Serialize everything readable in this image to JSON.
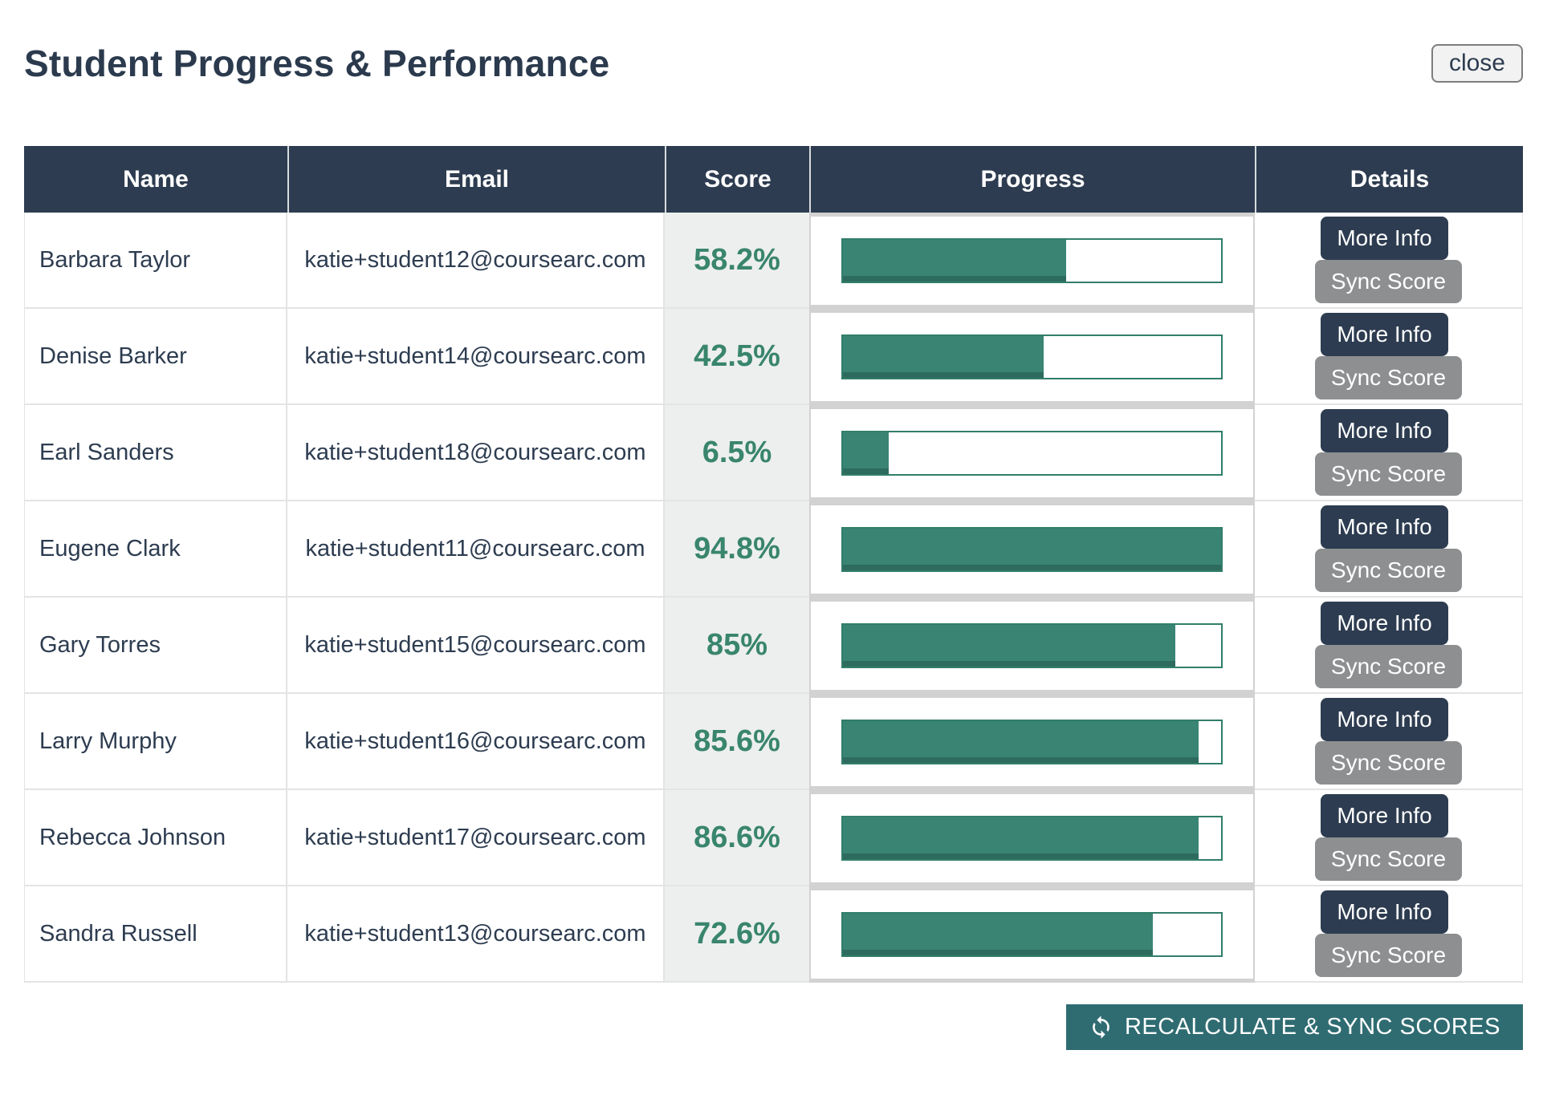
{
  "header": {
    "title": "Student Progress & Performance",
    "close_label": "close"
  },
  "table": {
    "columns": [
      "Name",
      "Email",
      "Score",
      "Progress",
      "Details"
    ],
    "rows": [
      {
        "name": "Barbara Taylor",
        "email": "katie+student12@coursearc.com",
        "score": "58.2%",
        "progress_percent": 59
      },
      {
        "name": "Denise Barker",
        "email": "katie+student14@coursearc.com",
        "score": "42.5%",
        "progress_percent": 53
      },
      {
        "name": "Earl Sanders",
        "email": "katie+student18@coursearc.com",
        "score": "6.5%",
        "progress_percent": 12
      },
      {
        "name": "Eugene Clark",
        "email": "katie+student11@coursearc.com",
        "score": "94.8%",
        "progress_percent": 100
      },
      {
        "name": "Gary Torres",
        "email": "katie+student15@coursearc.com",
        "score": "85%",
        "progress_percent": 88
      },
      {
        "name": "Larry Murphy",
        "email": "katie+student16@coursearc.com",
        "score": "85.6%",
        "progress_percent": 94
      },
      {
        "name": "Rebecca Johnson",
        "email": "katie+student17@coursearc.com",
        "score": "86.6%",
        "progress_percent": 94
      },
      {
        "name": "Sandra Russell",
        "email": "katie+student13@coursearc.com",
        "score": "72.6%",
        "progress_percent": 82
      }
    ],
    "row_buttons": {
      "more_info": "More Info",
      "sync_score": "Sync Score"
    }
  },
  "footer": {
    "recalculate_label": "RECALCULATE & SYNC SCORES",
    "icon": "sync-icon"
  },
  "colors": {
    "navy": "#2d3c50",
    "score_green": "#39856d",
    "bar_fill": "#3a8474",
    "bar_border": "#317e69",
    "teal_button": "#2f6c72",
    "gray_button": "#8d8f90",
    "score_bg": "#edefee"
  }
}
